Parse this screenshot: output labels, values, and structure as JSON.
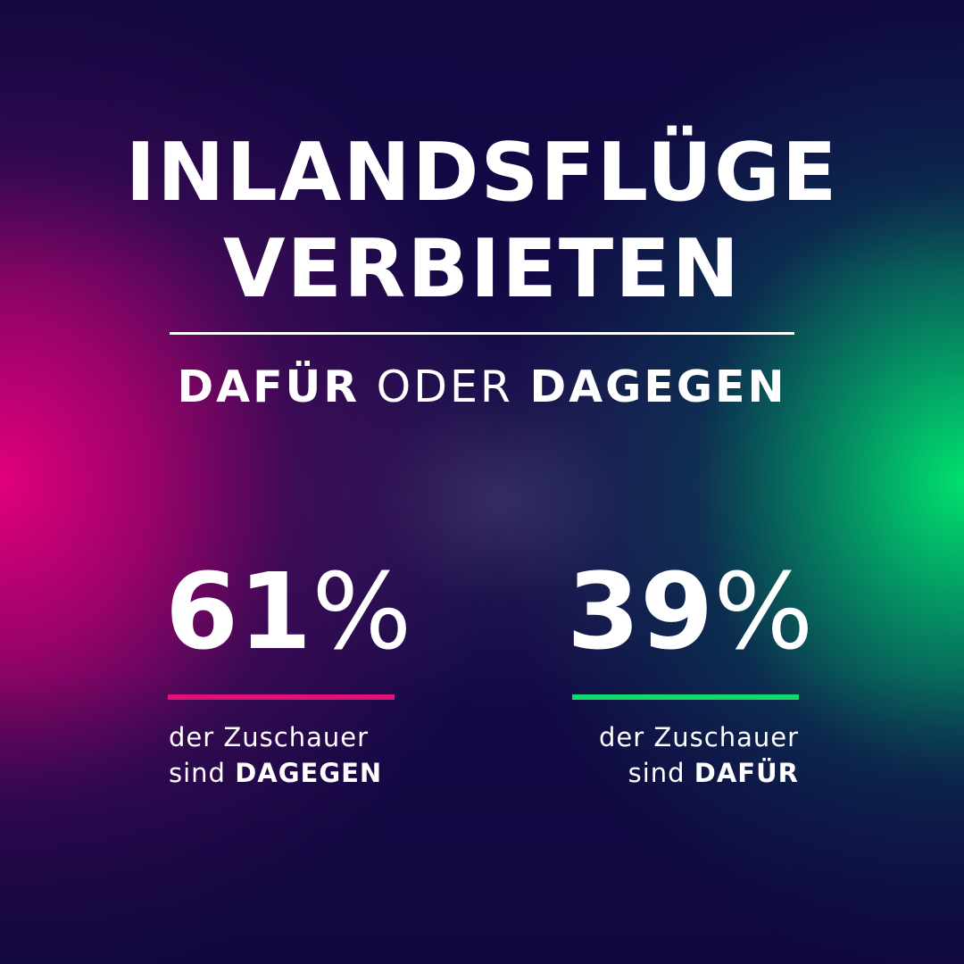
{
  "title": {
    "line1": "INLANDSFLÜGE",
    "line2": "VERBIETEN"
  },
  "subtitle": {
    "option_a": "DAFÜR",
    "connector": "ODER",
    "option_b": "DAGEGEN"
  },
  "chart_data": {
    "type": "bar",
    "categories": [
      "DAGEGEN",
      "DAFÜR"
    ],
    "values": [
      61,
      39
    ],
    "unit": "%",
    "title": "INLANDSFLÜGE VERBIETEN",
    "subtitle": "DAFÜR ODER DAGEGEN",
    "colors": [
      "#e0127a",
      "#12d96a"
    ],
    "labels": [
      {
        "value": "61",
        "unit": "%",
        "caption_line1": "der Zuschauer",
        "caption_prefix": "sind",
        "caption_emphasis": "DAGEGEN"
      },
      {
        "value": "39",
        "unit": "%",
        "caption_line1": "der Zuschauer",
        "caption_prefix": "sind",
        "caption_emphasis": "DAFÜR"
      }
    ]
  },
  "colors": {
    "text": "#ffffff",
    "background": "#120a45",
    "magenta": "#e0127a",
    "green": "#12d96a"
  }
}
